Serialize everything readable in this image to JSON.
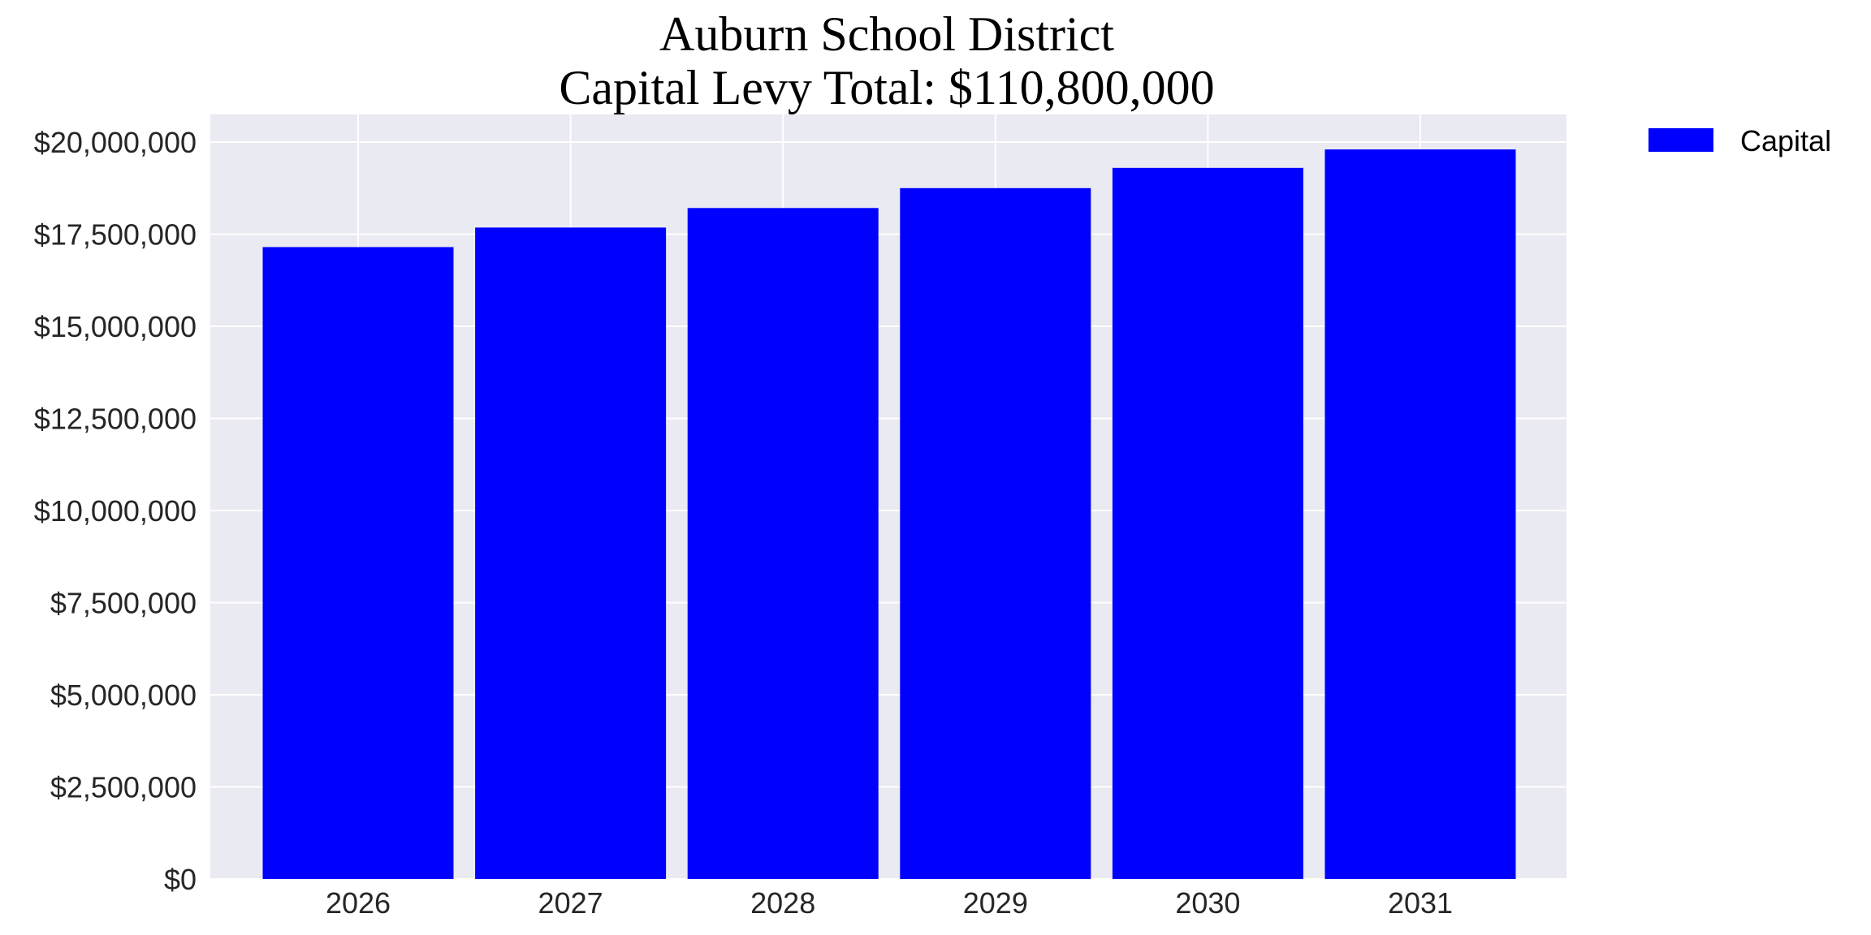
{
  "chart_data": {
    "type": "bar",
    "title": "Auburn School District",
    "subtitle": "Capital Levy Total: $110,800,000",
    "xlabel": "",
    "ylabel": "",
    "categories": [
      "2026",
      "2027",
      "2028",
      "2029",
      "2030",
      "2031"
    ],
    "series": [
      {
        "name": "Capital",
        "color": "#0000ff",
        "values": [
          17150000,
          17680000,
          18210000,
          18750000,
          19300000,
          19800000
        ]
      }
    ],
    "ylim": [
      0,
      20750000
    ],
    "yticks": [
      0,
      2500000,
      5000000,
      7500000,
      10000000,
      12500000,
      15000000,
      17500000,
      20000000
    ],
    "ytick_labels": [
      "$0",
      "$2,500,000",
      "$5,000,000",
      "$7,500,000",
      "$10,000,000",
      "$12,500,000",
      "$15,000,000",
      "$17,500,000",
      "$20,000,000"
    ],
    "grid": true,
    "legend_position": "outside-top-right",
    "plot_background": "#eaeaf2",
    "grid_color": "#ffffff"
  }
}
